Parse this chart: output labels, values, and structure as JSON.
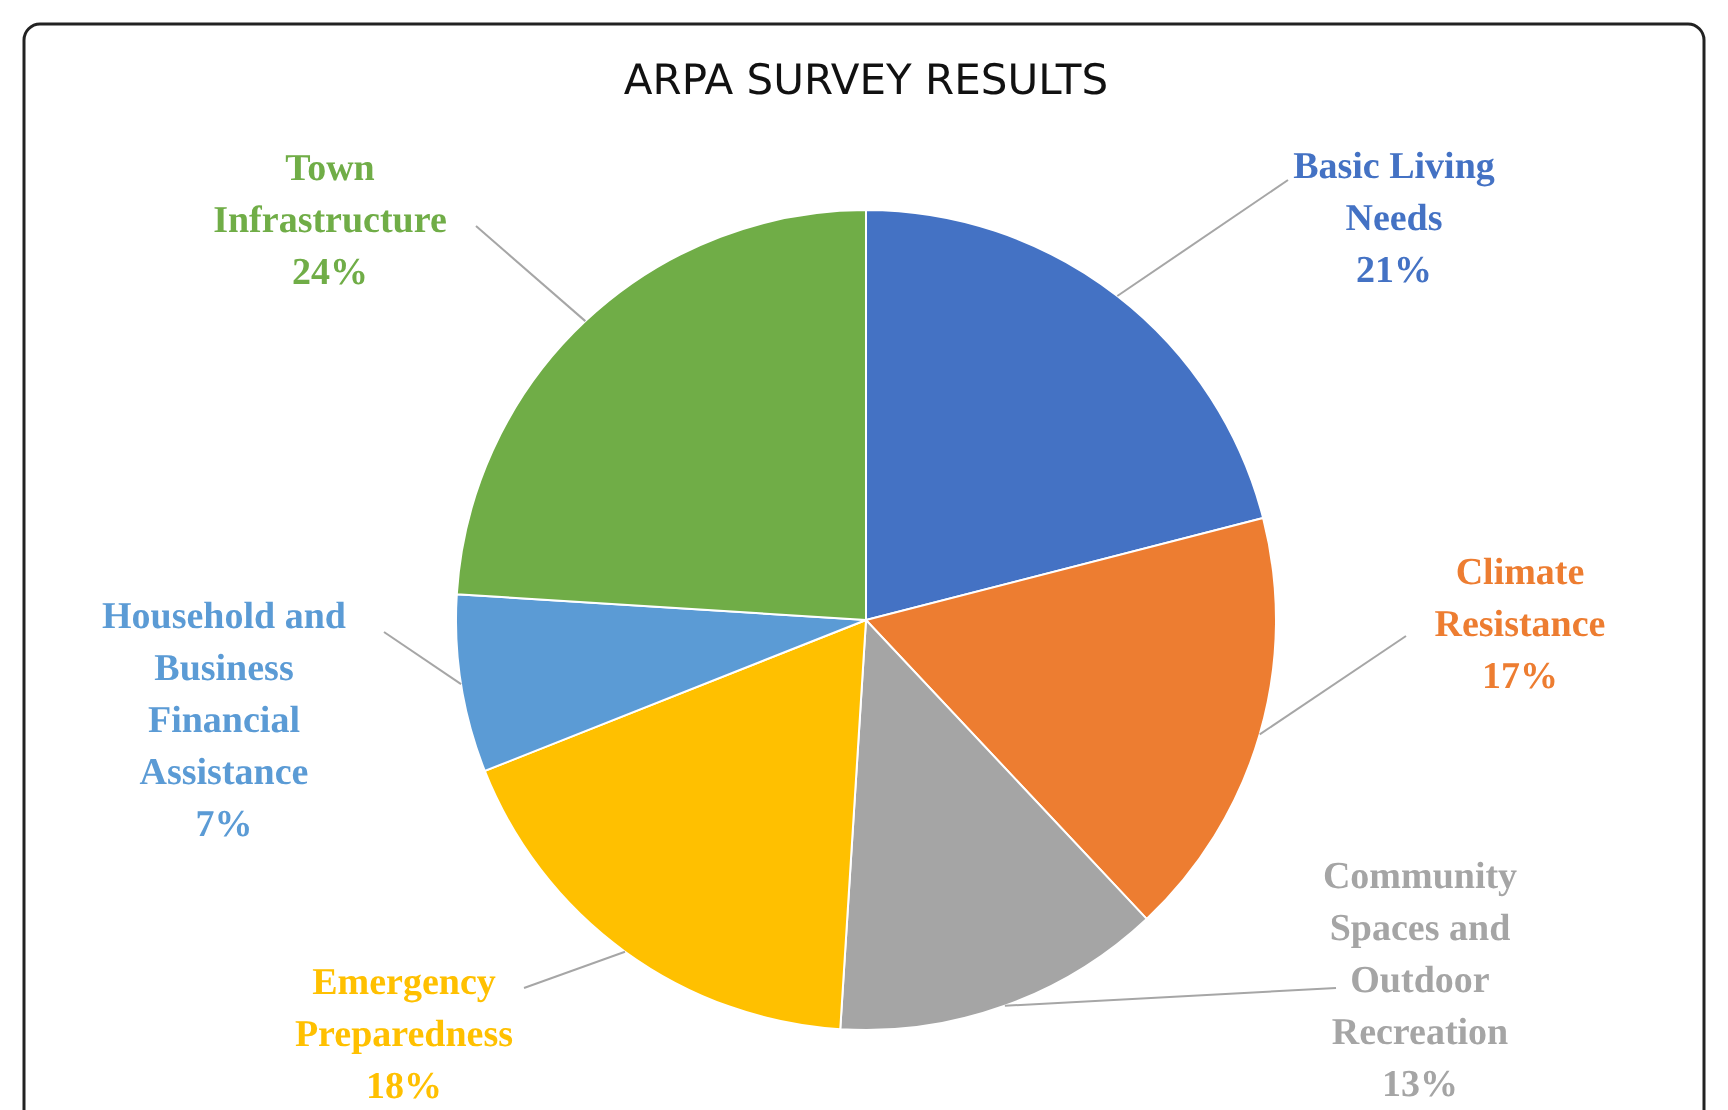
{
  "chart_data": {
    "type": "pie",
    "title": "ARPA SURVEY RESULTS",
    "categories": [
      "Basic Living Needs",
      "Climate Resistance",
      "Community Spaces and Outdoor Recreation",
      "Emergency Preparedness",
      "Household and Business Financial Assistance",
      "Town Infrastructure"
    ],
    "values": [
      21,
      17,
      13,
      18,
      7,
      24
    ],
    "value_labels": [
      "21%",
      "17%",
      "13%",
      "18%",
      "7%",
      "24%"
    ],
    "colors": [
      "#4472c4",
      "#ed7d31",
      "#a5a5a5",
      "#ffc000",
      "#5b9bd5",
      "#70ad47"
    ]
  }
}
